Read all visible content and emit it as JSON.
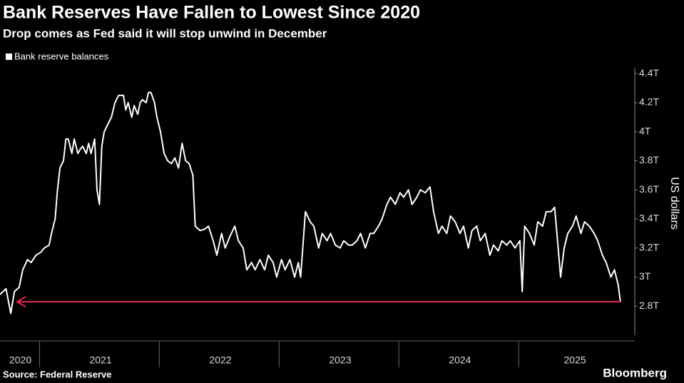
{
  "chart_data": {
    "type": "line",
    "title": "Bank Reserves Have Fallen to Lowest Since 2020",
    "subtitle": "Drop comes as Fed said it will stop unwind in December",
    "y_label": "US dollars",
    "source": "Source: Federal Reserve",
    "brand": "Bloomberg",
    "legend": "top-left",
    "arrow_color": "#e8274f",
    "x": [
      2020.67,
      2020.72,
      2020.76,
      2020.79,
      2020.83,
      2020.86,
      2020.9,
      2020.93,
      2020.97,
      2021.01,
      2021.04,
      2021.08,
      2021.1,
      2021.13,
      2021.15,
      2021.17,
      2021.2,
      2021.22,
      2021.24,
      2021.27,
      2021.29,
      2021.32,
      2021.34,
      2021.36,
      2021.39,
      2021.41,
      2021.43,
      2021.46,
      2021.48,
      2021.5,
      2021.52,
      2021.54,
      2021.57,
      2021.6,
      2021.63,
      2021.66,
      2021.7,
      2021.72,
      2021.74,
      2021.77,
      2021.79,
      2021.82,
      2021.84,
      2021.86,
      2021.89,
      2021.91,
      2021.93,
      2021.96,
      2021.98,
      2022.01,
      2022.04,
      2022.07,
      2022.1,
      2022.13,
      2022.16,
      2022.19,
      2022.22,
      2022.25,
      2022.28,
      2022.3,
      2022.34,
      2022.38,
      2022.41,
      2022.45,
      2022.48,
      2022.52,
      2022.55,
      2022.59,
      2022.63,
      2022.66,
      2022.7,
      2022.73,
      2022.77,
      2022.8,
      2022.84,
      2022.88,
      2022.91,
      2022.95,
      2022.98,
      2023.02,
      2023.05,
      2023.09,
      2023.13,
      2023.16,
      2023.18,
      2023.22,
      2023.26,
      2023.29,
      2023.33,
      2023.36,
      2023.4,
      2023.43,
      2023.47,
      2023.51,
      2023.54,
      2023.58,
      2023.61,
      2023.65,
      2023.68,
      2023.72,
      2023.76,
      2023.79,
      2023.83,
      2023.86,
      2023.9,
      2023.93,
      2023.97,
      2024.01,
      2024.04,
      2024.08,
      2024.11,
      2024.15,
      2024.18,
      2024.22,
      2024.26,
      2024.29,
      2024.33,
      2024.36,
      2024.4,
      2024.43,
      2024.47,
      2024.51,
      2024.54,
      2024.58,
      2024.61,
      2024.65,
      2024.68,
      2024.72,
      2024.76,
      2024.79,
      2024.83,
      2024.86,
      2024.9,
      2024.93,
      2024.97,
      2025.01,
      2025.03,
      2025.05,
      2025.09,
      2025.13,
      2025.16,
      2025.2,
      2025.23,
      2025.27,
      2025.3,
      2025.33,
      2025.35,
      2025.38,
      2025.41,
      2025.45,
      2025.48,
      2025.52,
      2025.55,
      2025.59,
      2025.63,
      2025.66,
      2025.7,
      2025.73,
      2025.77,
      2025.8,
      2025.83,
      2025.85
    ],
    "series": [
      {
        "name": "Bank reserve balances",
        "color": "#ffffff",
        "values": [
          2.88,
          2.92,
          2.75,
          2.9,
          2.93,
          3.05,
          3.12,
          3.1,
          3.15,
          3.17,
          3.2,
          3.22,
          3.3,
          3.4,
          3.6,
          3.75,
          3.8,
          3.95,
          3.95,
          3.85,
          3.95,
          3.85,
          3.88,
          3.9,
          3.85,
          3.92,
          3.85,
          3.95,
          3.6,
          3.5,
          3.9,
          4.0,
          4.05,
          4.1,
          4.2,
          4.25,
          4.25,
          4.15,
          4.2,
          4.1,
          4.18,
          4.12,
          4.2,
          4.22,
          4.2,
          4.27,
          4.27,
          4.2,
          4.1,
          4.0,
          3.85,
          3.8,
          3.78,
          3.82,
          3.75,
          3.92,
          3.8,
          3.78,
          3.7,
          3.35,
          3.32,
          3.33,
          3.35,
          3.25,
          3.15,
          3.3,
          3.2,
          3.28,
          3.35,
          3.25,
          3.2,
          3.05,
          3.1,
          3.05,
          3.12,
          3.05,
          3.15,
          3.1,
          3.0,
          3.12,
          3.05,
          3.12,
          3.0,
          3.1,
          3.0,
          3.45,
          3.38,
          3.35,
          3.2,
          3.3,
          3.25,
          3.3,
          3.22,
          3.2,
          3.25,
          3.22,
          3.22,
          3.25,
          3.3,
          3.2,
          3.3,
          3.3,
          3.35,
          3.4,
          3.5,
          3.55,
          3.5,
          3.58,
          3.55,
          3.6,
          3.5,
          3.55,
          3.6,
          3.58,
          3.62,
          3.45,
          3.3,
          3.35,
          3.3,
          3.42,
          3.38,
          3.3,
          3.35,
          3.2,
          3.32,
          3.35,
          3.25,
          3.3,
          3.15,
          3.22,
          3.18,
          3.25,
          3.22,
          3.25,
          3.2,
          3.25,
          2.9,
          3.35,
          3.3,
          3.22,
          3.38,
          3.35,
          3.45,
          3.45,
          3.48,
          3.2,
          3.0,
          3.2,
          3.3,
          3.35,
          3.42,
          3.3,
          3.38,
          3.35,
          3.3,
          3.25,
          3.15,
          3.1,
          3.0,
          3.05,
          2.95,
          2.83
        ]
      }
    ],
    "xlim": [
      2020.67,
      2025.91
    ],
    "xticks": [
      {
        "value": 2020.84,
        "label": "2020"
      },
      {
        "value": 2021.51,
        "label": "2021"
      },
      {
        "value": 2022.51,
        "label": "2022"
      },
      {
        "value": 2023.51,
        "label": "2023"
      },
      {
        "value": 2024.51,
        "label": "2024"
      },
      {
        "value": 2025.47,
        "label": "2025"
      }
    ],
    "x_separators": [
      2021,
      2022,
      2023,
      2024,
      2025
    ],
    "ylim": [
      2.6,
      4.44
    ],
    "yticks": [
      {
        "value": 2.8,
        "label": "2.8T"
      },
      {
        "value": 3,
        "label": "3T"
      },
      {
        "value": 3.2,
        "label": "3.2T"
      },
      {
        "value": 3.4,
        "label": "3.4T"
      },
      {
        "value": 3.6,
        "label": "3.6T"
      },
      {
        "value": 3.8,
        "label": "3.8T"
      },
      {
        "value": 4,
        "label": "4T"
      },
      {
        "value": 4.2,
        "label": "4.2T"
      },
      {
        "value": 4.4,
        "label": "4.4T"
      }
    ]
  }
}
